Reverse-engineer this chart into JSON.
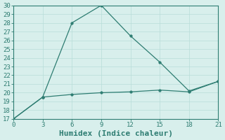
{
  "line1_x": [
    0,
    3,
    6,
    9,
    12,
    15,
    18,
    21
  ],
  "line1_y": [
    17,
    19.5,
    28,
    30,
    26.5,
    23.5,
    20.2,
    21.3
  ],
  "line2_x": [
    0,
    3,
    6,
    9,
    12,
    15,
    18,
    21
  ],
  "line2_y": [
    17,
    19.5,
    19.8,
    20.0,
    20.1,
    20.3,
    20.1,
    21.3
  ],
  "line_color": "#2e7d72",
  "bg_color": "#d8efec",
  "grid_color": "#b8ddd8",
  "xlabel": "Humidex (Indice chaleur)",
  "ylim": [
    17,
    30
  ],
  "xlim": [
    0,
    21
  ],
  "xticks": [
    0,
    3,
    6,
    9,
    12,
    15,
    18,
    21
  ],
  "yticks": [
    17,
    18,
    19,
    20,
    21,
    22,
    23,
    24,
    25,
    26,
    27,
    28,
    29,
    30
  ],
  "xlabel_fontsize": 8,
  "tick_fontsize": 6.5,
  "line_width": 0.9,
  "marker_size": 2.5
}
